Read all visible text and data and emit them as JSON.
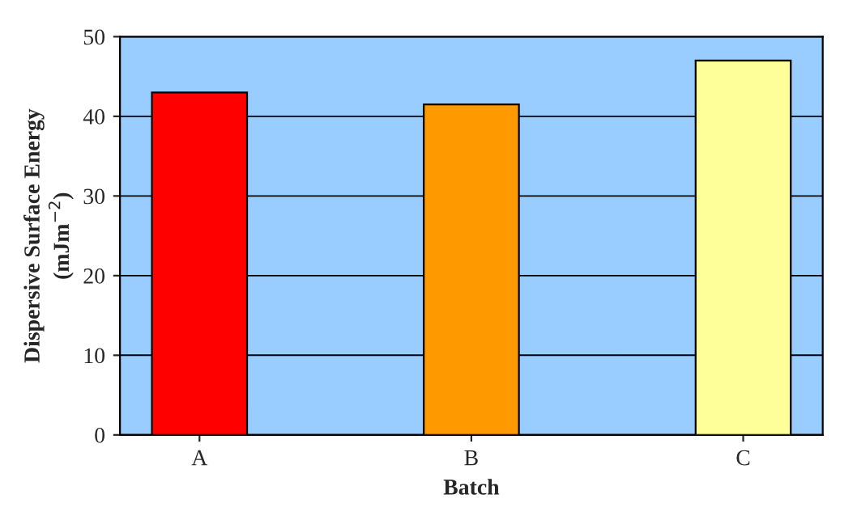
{
  "chart_data": {
    "type": "bar",
    "xlabel": "Batch",
    "ylabel": "Dispersive Surface Energy\n(mJm$^{−2}$)",
    "categories": [
      "A",
      "B",
      "C"
    ],
    "values": [
      43,
      41.5,
      47
    ],
    "colors": [
      "#ff0000",
      "#ff9900",
      "#ffff99"
    ],
    "ylim": [
      0,
      50
    ],
    "yticks": [
      0,
      10,
      20,
      30,
      40,
      50
    ],
    "grid": "y"
  }
}
